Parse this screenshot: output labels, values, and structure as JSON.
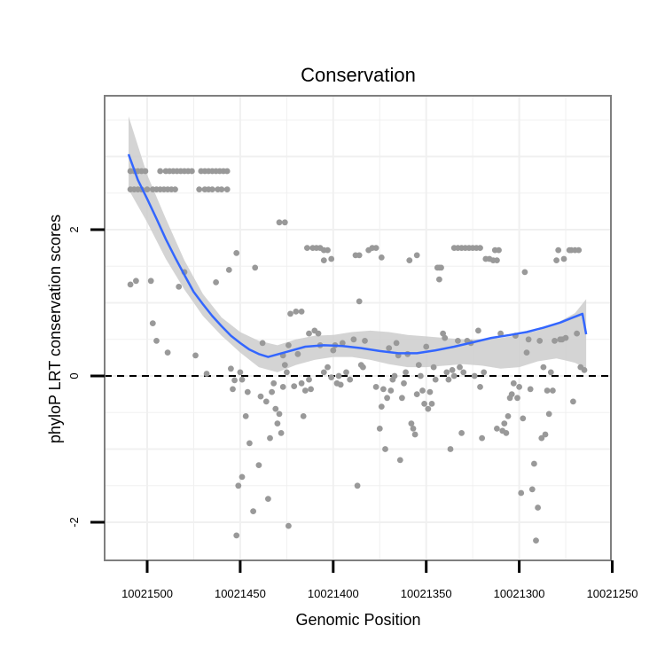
{
  "chart_data": {
    "type": "scatter",
    "title": "Conservation",
    "xlabel": "Genomic Position",
    "ylabel": "phyloP LRT conservation scores",
    "x_reversed": true,
    "xlim": [
      10021512,
      10021242
    ],
    "ylim": [
      -2.5,
      3.85
    ],
    "x_ticks": [
      10021500,
      10021450,
      10021400,
      10021350,
      10021300,
      10021250
    ],
    "x_tick_labels": [
      "10021500",
      "10021450",
      "10021400",
      "10021350",
      "10021300",
      "10021250"
    ],
    "y_ticks": [
      -2,
      0,
      2
    ],
    "y_tick_labels": [
      "-2",
      "0",
      "2"
    ],
    "reference_line": {
      "y": 0,
      "style": "dashed"
    },
    "colors": {
      "points": "#999999",
      "smooth_line": "#3366ff",
      "ribbon": "#cccccc",
      "grid": "#f0f0f0",
      "panel_border": "#7f7f7f"
    },
    "points": [
      [
        10021509,
        2.8
      ],
      [
        10021507,
        2.8
      ],
      [
        10021505,
        2.8
      ],
      [
        10021503,
        2.8
      ],
      [
        10021501,
        2.8
      ],
      [
        10021509,
        2.55
      ],
      [
        10021507,
        2.55
      ],
      [
        10021505,
        2.55
      ],
      [
        10021503,
        2.55
      ],
      [
        10021500,
        2.55
      ],
      [
        10021497,
        2.55
      ],
      [
        10021495,
        2.55
      ],
      [
        10021493,
        2.55
      ],
      [
        10021491,
        2.55
      ],
      [
        10021489,
        2.55
      ],
      [
        10021487,
        2.55
      ],
      [
        10021485,
        2.55
      ],
      [
        10021493,
        2.8
      ],
      [
        10021490,
        2.8
      ],
      [
        10021488,
        2.8
      ],
      [
        10021486,
        2.8
      ],
      [
        10021484,
        2.8
      ],
      [
        10021482,
        2.8
      ],
      [
        10021480,
        2.8
      ],
      [
        10021478,
        2.8
      ],
      [
        10021476,
        2.8
      ],
      [
        10021471,
        2.8
      ],
      [
        10021469,
        2.8
      ],
      [
        10021467,
        2.8
      ],
      [
        10021465,
        2.8
      ],
      [
        10021463,
        2.8
      ],
      [
        10021461,
        2.8
      ],
      [
        10021459,
        2.8
      ],
      [
        10021457,
        2.8
      ],
      [
        10021472,
        2.55
      ],
      [
        10021469,
        2.55
      ],
      [
        10021467,
        2.55
      ],
      [
        10021465,
        2.55
      ],
      [
        10021462,
        2.55
      ],
      [
        10021460,
        2.55
      ],
      [
        10021457,
        2.55
      ],
      [
        10021509,
        1.25
      ],
      [
        10021506,
        1.3
      ],
      [
        10021498,
        1.3
      ],
      [
        10021497,
        0.72
      ],
      [
        10021495,
        0.48
      ],
      [
        10021489,
        0.32
      ],
      [
        10021483,
        1.22
      ],
      [
        10021480,
        1.42
      ],
      [
        10021474,
        0.28
      ],
      [
        10021468,
        0.03
      ],
      [
        10021463,
        1.28
      ],
      [
        10021456,
        1.45
      ],
      [
        10021452,
        1.68
      ],
      [
        10021455,
        0.1
      ],
      [
        10021454,
        -0.18
      ],
      [
        10021453,
        -0.06
      ],
      [
        10021450,
        0.05
      ],
      [
        10021449,
        -0.05
      ],
      [
        10021451,
        -1.5
      ],
      [
        10021449,
        -1.38
      ],
      [
        10021447,
        -0.55
      ],
      [
        10021446,
        -0.22
      ],
      [
        10021445,
        -0.92
      ],
      [
        10021443,
        -1.85
      ],
      [
        10021442,
        1.48
      ],
      [
        10021440,
        -1.22
      ],
      [
        10021439,
        -0.28
      ],
      [
        10021438,
        0.45
      ],
      [
        10021436,
        -0.35
      ],
      [
        10021435,
        -1.68
      ],
      [
        10021434,
        -0.85
      ],
      [
        10021433,
        -0.22
      ],
      [
        10021432,
        -0.1
      ],
      [
        10021431,
        -0.45
      ],
      [
        10021430,
        -0.65
      ],
      [
        10021429,
        -0.52
      ],
      [
        10021428,
        -0.78
      ],
      [
        10021427,
        -0.15
      ],
      [
        10021426,
        0.15
      ],
      [
        10021425,
        0.05
      ],
      [
        10021452,
        -2.18
      ],
      [
        10021424,
        -2.05
      ],
      [
        10021429,
        2.1
      ],
      [
        10021426,
        2.1
      ],
      [
        10021423,
        0.85
      ],
      [
        10021420,
        0.88
      ],
      [
        10021417,
        0.88
      ],
      [
        10021427,
        0.28
      ],
      [
        10021424,
        0.42
      ],
      [
        10021421,
        -0.14
      ],
      [
        10021419,
        0.3
      ],
      [
        10021417,
        -0.1
      ],
      [
        10021416,
        -0.55
      ],
      [
        10021415,
        -0.2
      ],
      [
        10021413,
        -0.05
      ],
      [
        10021412,
        -0.18
      ],
      [
        10021414,
        1.75
      ],
      [
        10021411,
        1.75
      ],
      [
        10021409,
        1.75
      ],
      [
        10021407,
        1.75
      ],
      [
        10021405,
        1.72
      ],
      [
        10021413,
        0.58
      ],
      [
        10021410,
        0.62
      ],
      [
        10021408,
        0.58
      ],
      [
        10021407,
        0.42
      ],
      [
        10021405,
        1.58
      ],
      [
        10021403,
        1.72
      ],
      [
        10021401,
        1.6
      ],
      [
        10021405,
        0.05
      ],
      [
        10021403,
        0.12
      ],
      [
        10021401,
        -0.02
      ],
      [
        10021400,
        0.35
      ],
      [
        10021399,
        0.42
      ],
      [
        10021398,
        -0.1
      ],
      [
        10021397,
        0.0
      ],
      [
        10021396,
        -0.12
      ],
      [
        10021395,
        0.45
      ],
      [
        10021393,
        0.05
      ],
      [
        10021391,
        -0.05
      ],
      [
        10021389,
        0.5
      ],
      [
        10021387,
        -1.5
      ],
      [
        10021386,
        1.02
      ],
      [
        10021385,
        0.15
      ],
      [
        10021384,
        0.12
      ],
      [
        10021383,
        0.48
      ],
      [
        10021381,
        1.72
      ],
      [
        10021379,
        1.75
      ],
      [
        10021377,
        1.75
      ],
      [
        10021374,
        1.62
      ],
      [
        10021388,
        1.65
      ],
      [
        10021386,
        1.65
      ],
      [
        10021377,
        -0.15
      ],
      [
        10021375,
        -0.72
      ],
      [
        10021374,
        -0.42
      ],
      [
        10021373,
        -0.18
      ],
      [
        10021372,
        -1.0
      ],
      [
        10021371,
        -0.3
      ],
      [
        10021370,
        0.38
      ],
      [
        10021369,
        -0.2
      ],
      [
        10021368,
        -0.05
      ],
      [
        10021367,
        0.0
      ],
      [
        10021366,
        0.45
      ],
      [
        10021365,
        0.28
      ],
      [
        10021364,
        -1.15
      ],
      [
        10021363,
        -0.3
      ],
      [
        10021362,
        -0.1
      ],
      [
        10021361,
        0.05
      ],
      [
        10021360,
        0.3
      ],
      [
        10021359,
        1.58
      ],
      [
        10021358,
        -0.65
      ],
      [
        10021357,
        -0.72
      ],
      [
        10021356,
        -0.8
      ],
      [
        10021355,
        -0.25
      ],
      [
        10021354,
        0.15
      ],
      [
        10021353,
        0.0
      ],
      [
        10021352,
        -0.2
      ],
      [
        10021351,
        -0.38
      ],
      [
        10021355,
        1.65
      ],
      [
        10021350,
        0.4
      ],
      [
        10021349,
        -0.45
      ],
      [
        10021348,
        -0.22
      ],
      [
        10021347,
        -0.38
      ],
      [
        10021346,
        0.12
      ],
      [
        10021345,
        -0.05
      ],
      [
        10021344,
        1.48
      ],
      [
        10021343,
        1.48
      ],
      [
        10021342,
        1.48
      ],
      [
        10021343,
        1.32
      ],
      [
        10021341,
        0.58
      ],
      [
        10021340,
        0.52
      ],
      [
        10021339,
        0.05
      ],
      [
        10021338,
        -0.05
      ],
      [
        10021337,
        -1.0
      ],
      [
        10021336,
        0.08
      ],
      [
        10021335,
        0.0
      ],
      [
        10021333,
        0.48
      ],
      [
        10021332,
        0.12
      ],
      [
        10021331,
        -0.78
      ],
      [
        10021330,
        0.05
      ],
      [
        10021335,
        1.75
      ],
      [
        10021333,
        1.75
      ],
      [
        10021331,
        1.75
      ],
      [
        10021329,
        1.75
      ],
      [
        10021327,
        1.75
      ],
      [
        10021325,
        1.75
      ],
      [
        10021323,
        1.75
      ],
      [
        10021321,
        1.75
      ],
      [
        10021328,
        0.48
      ],
      [
        10021326,
        0.45
      ],
      [
        10021324,
        0.0
      ],
      [
        10021322,
        0.62
      ],
      [
        10021321,
        -0.15
      ],
      [
        10021320,
        -0.85
      ],
      [
        10021319,
        0.05
      ],
      [
        10021318,
        1.6
      ],
      [
        10021316,
        1.6
      ],
      [
        10021314,
        1.58
      ],
      [
        10021312,
        1.58
      ],
      [
        10021313,
        1.72
      ],
      [
        10021311,
        1.72
      ],
      [
        10021312,
        -0.72
      ],
      [
        10021310,
        0.58
      ],
      [
        10021309,
        -0.75
      ],
      [
        10021308,
        -0.65
      ],
      [
        10021307,
        -0.78
      ],
      [
        10021306,
        -0.55
      ],
      [
        10021305,
        -0.3
      ],
      [
        10021304,
        -0.25
      ],
      [
        10021303,
        -0.1
      ],
      [
        10021302,
        0.55
      ],
      [
        10021301,
        -0.3
      ],
      [
        10021300,
        -0.15
      ],
      [
        10021299,
        -1.6
      ],
      [
        10021298,
        -0.58
      ],
      [
        10021297,
        1.42
      ],
      [
        10021296,
        0.32
      ],
      [
        10021295,
        0.5
      ],
      [
        10021294,
        -0.18
      ],
      [
        10021293,
        -1.55
      ],
      [
        10021292,
        -1.2
      ],
      [
        10021291,
        -2.25
      ],
      [
        10021290,
        -1.8
      ],
      [
        10021289,
        0.48
      ],
      [
        10021288,
        -0.85
      ],
      [
        10021287,
        0.12
      ],
      [
        10021286,
        -0.8
      ],
      [
        10021285,
        -0.2
      ],
      [
        10021284,
        -0.52
      ],
      [
        10021283,
        0.05
      ],
      [
        10021282,
        -0.2
      ],
      [
        10021281,
        0.48
      ],
      [
        10021280,
        1.58
      ],
      [
        10021279,
        1.72
      ],
      [
        10021278,
        0.5
      ],
      [
        10021277,
        0.5
      ],
      [
        10021276,
        1.6
      ],
      [
        10021275,
        0.52
      ],
      [
        10021273,
        1.72
      ],
      [
        10021272,
        1.72
      ],
      [
        10021271,
        -0.35
      ],
      [
        10021270,
        1.72
      ],
      [
        10021269,
        0.58
      ],
      [
        10021268,
        1.72
      ],
      [
        10021267,
        0.12
      ],
      [
        10021265,
        0.08
      ]
    ],
    "smooth_fit": [
      [
        10021510,
        3.03
      ],
      [
        10021505,
        2.68
      ],
      [
        10021500,
        2.42
      ],
      [
        10021495,
        2.15
      ],
      [
        10021490,
        1.87
      ],
      [
        10021485,
        1.62
      ],
      [
        10021480,
        1.38
      ],
      [
        10021475,
        1.15
      ],
      [
        10021470,
        0.98
      ],
      [
        10021465,
        0.82
      ],
      [
        10021460,
        0.68
      ],
      [
        10021455,
        0.55
      ],
      [
        10021450,
        0.45
      ],
      [
        10021445,
        0.36
      ],
      [
        10021440,
        0.3
      ],
      [
        10021435,
        0.26
      ],
      [
        10021425,
        0.33
      ],
      [
        10021415,
        0.4
      ],
      [
        10021405,
        0.42
      ],
      [
        10021395,
        0.41
      ],
      [
        10021385,
        0.38
      ],
      [
        10021375,
        0.34
      ],
      [
        10021365,
        0.31
      ],
      [
        10021355,
        0.31
      ],
      [
        10021345,
        0.35
      ],
      [
        10021335,
        0.4
      ],
      [
        10021325,
        0.46
      ],
      [
        10021315,
        0.52
      ],
      [
        10021305,
        0.56
      ],
      [
        10021296,
        0.6
      ],
      [
        10021287,
        0.66
      ],
      [
        10021278,
        0.73
      ],
      [
        10021272,
        0.79
      ],
      [
        10021266,
        0.85
      ],
      [
        10021264,
        0.57
      ]
    ],
    "ribbon_upper": [
      [
        10021510,
        3.55
      ],
      [
        10021500,
        2.75
      ],
      [
        10021490,
        2.15
      ],
      [
        10021480,
        1.58
      ],
      [
        10021470,
        1.12
      ],
      [
        10021460,
        0.8
      ],
      [
        10021450,
        0.6
      ],
      [
        10021440,
        0.48
      ],
      [
        10021430,
        0.42
      ],
      [
        10021420,
        0.5
      ],
      [
        10021410,
        0.55
      ],
      [
        10021400,
        0.56
      ],
      [
        10021390,
        0.6
      ],
      [
        10021380,
        0.62
      ],
      [
        10021370,
        0.6
      ],
      [
        10021360,
        0.56
      ],
      [
        10021350,
        0.54
      ],
      [
        10021340,
        0.52
      ],
      [
        10021330,
        0.5
      ],
      [
        10021320,
        0.5
      ],
      [
        10021310,
        0.52
      ],
      [
        10021300,
        0.56
      ],
      [
        10021290,
        0.62
      ],
      [
        10021280,
        0.72
      ],
      [
        10021270,
        0.86
      ],
      [
        10021264,
        1.05
      ]
    ],
    "ribbon_lower": [
      [
        10021510,
        2.55
      ],
      [
        10021500,
        2.1
      ],
      [
        10021490,
        1.6
      ],
      [
        10021480,
        1.18
      ],
      [
        10021470,
        0.82
      ],
      [
        10021460,
        0.55
      ],
      [
        10021450,
        0.32
      ],
      [
        10021440,
        0.12
      ],
      [
        10021430,
        0.05
      ],
      [
        10021420,
        0.15
      ],
      [
        10021410,
        0.22
      ],
      [
        10021400,
        0.26
      ],
      [
        10021390,
        0.26
      ],
      [
        10021380,
        0.22
      ],
      [
        10021370,
        0.16
      ],
      [
        10021360,
        0.12
      ],
      [
        10021350,
        0.12
      ],
      [
        10021340,
        0.14
      ],
      [
        10021330,
        0.16
      ],
      [
        10021320,
        0.14
      ],
      [
        10021310,
        0.1
      ],
      [
        10021300,
        0.12
      ],
      [
        10021290,
        0.2
      ],
      [
        10021280,
        0.24
      ],
      [
        10021270,
        0.18
      ],
      [
        10021264,
        0.1
      ]
    ]
  }
}
